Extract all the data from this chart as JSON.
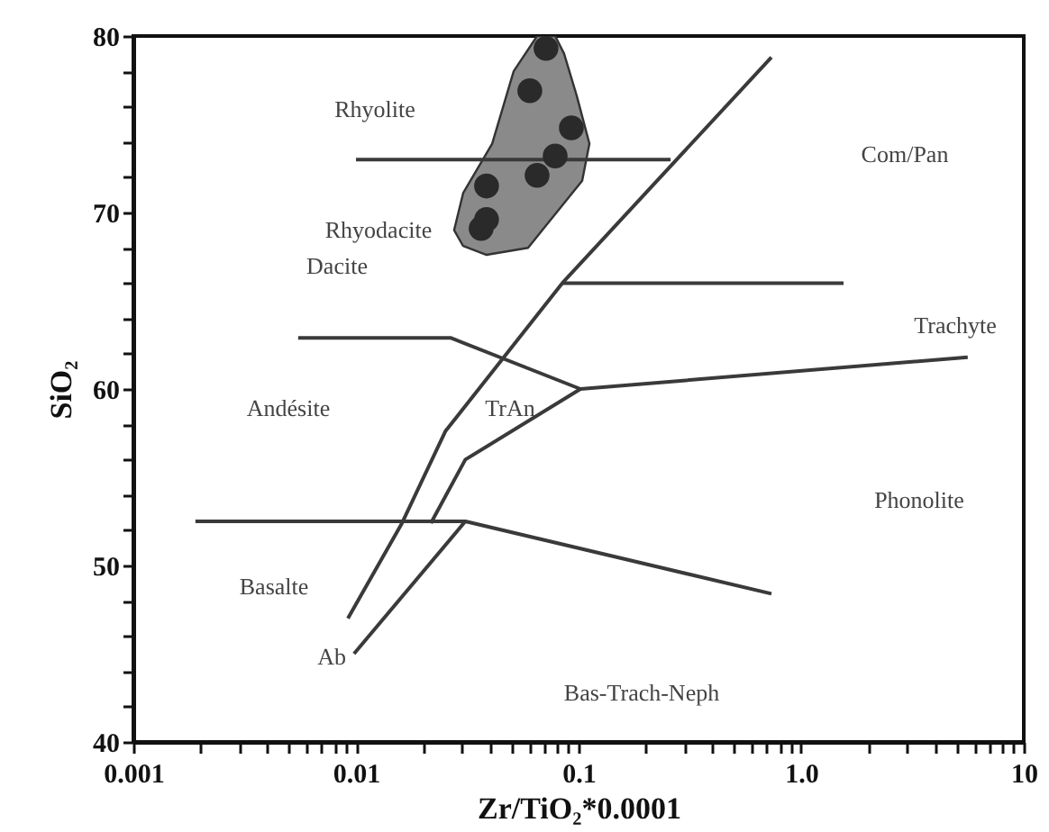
{
  "chart_data": {
    "type": "line",
    "log": "x",
    "marker": "none",
    "line_style": "solid",
    "xlabel": "Zr/TiO₂*0.0001",
    "ylabel": "SiO₂",
    "xlim": [
      0.001,
      10
    ],
    "ylim": [
      40,
      80
    ],
    "xticks": [
      {
        "value": 0.001,
        "label": "0.001"
      },
      {
        "value": 0.002,
        "label": null
      },
      {
        "value": 0.003,
        "label": null
      },
      {
        "value": 0.004,
        "label": null
      },
      {
        "value": 0.005,
        "label": null
      },
      {
        "value": 0.006,
        "label": null
      },
      {
        "value": 0.007,
        "label": null
      },
      {
        "value": 0.008,
        "label": null
      },
      {
        "value": 0.009,
        "label": null
      },
      {
        "value": 0.01,
        "label": "0.01"
      },
      {
        "value": 0.02,
        "label": null
      },
      {
        "value": 0.03,
        "label": null
      },
      {
        "value": 0.04,
        "label": null
      },
      {
        "value": 0.05,
        "label": null
      },
      {
        "value": 0.06,
        "label": null
      },
      {
        "value": 0.07,
        "label": null
      },
      {
        "value": 0.08,
        "label": null
      },
      {
        "value": 0.09,
        "label": null
      },
      {
        "value": 0.1,
        "label": "0.1"
      },
      {
        "value": 0.2,
        "label": null
      },
      {
        "value": 0.3,
        "label": null
      },
      {
        "value": 0.4,
        "label": null
      },
      {
        "value": 0.5,
        "label": null
      },
      {
        "value": 0.6,
        "label": null
      },
      {
        "value": 0.7,
        "label": null
      },
      {
        "value": 0.8,
        "label": null
      },
      {
        "value": 0.9,
        "label": null
      },
      {
        "value": 1,
        "label": "1.0"
      },
      {
        "value": 2,
        "label": null
      },
      {
        "value": 3,
        "label": null
      },
      {
        "value": 4,
        "label": null
      },
      {
        "value": 5,
        "label": null
      },
      {
        "value": 6,
        "label": null
      },
      {
        "value": 7,
        "label": null
      },
      {
        "value": 8,
        "label": null
      },
      {
        "value": 9,
        "label": null
      },
      10
    ],
    "yticks": [
      40,
      {
        "value": 42,
        "label": null
      },
      {
        "value": 44,
        "label": null
      },
      {
        "value": 46,
        "label": null
      },
      {
        "value": 48,
        "label": null
      },
      50,
      {
        "value": 52,
        "label": null
      },
      {
        "value": 54,
        "label": null
      },
      {
        "value": 56,
        "label": null
      },
      {
        "value": 58,
        "label": null
      },
      60,
      {
        "value": 62,
        "label": null
      },
      {
        "value": 64,
        "label": null
      },
      {
        "value": 66,
        "label": null
      },
      {
        "value": 68,
        "label": null
      },
      70,
      {
        "value": 72,
        "label": null
      },
      {
        "value": 74,
        "label": null
      },
      {
        "value": 76,
        "label": null
      },
      {
        "value": 78,
        "label": null
      },
      80
    ],
    "series": [
      {
        "type": "area",
        "color": "#8a8a8a",
        "x": [
          0.0651,
          0.0511,
          0.0409,
          0.0303,
          0.0276,
          0.0303,
          0.0386,
          0.0593,
          0.1038,
          0.1119,
          0.0982,
          0.0861,
          0.0785,
          0.0651
        ],
        "values": [
          80,
          78,
          73.9,
          71.1,
          69,
          68.1,
          67.6,
          68,
          71.8,
          73.9,
          76.6,
          79,
          80,
          80
        ]
      },
      {
        "color": "#3a3a3a",
        "x": [
          0.01,
          0.259
        ],
        "values": [
          73,
          73
        ]
      },
      {
        "color": "#3a3a3a",
        "x": [
          0.735,
          0.0845,
          0.0252,
          0.0161,
          0.0092
        ],
        "values": [
          78.8,
          66,
          57.6,
          52.4,
          47
        ]
      },
      {
        "color": "#3a3a3a",
        "x": [
          0.0845,
          1.55
        ],
        "values": [
          66,
          66
        ]
      },
      {
        "color": "#3a3a3a",
        "x": [
          0.0055,
          0.0266,
          0.102,
          5.6
        ],
        "values": [
          62.9,
          62.9,
          60,
          61.8
        ]
      },
      {
        "color": "#3a3a3a",
        "x": [
          0.102,
          0.031,
          0.0217
        ],
        "values": [
          60,
          56,
          52.4
        ]
      },
      {
        "color": "#3a3a3a",
        "x": [
          0.0019,
          0.031,
          0.735
        ],
        "values": [
          52.5,
          52.5,
          48.4
        ]
      },
      {
        "color": "#3a3a3a",
        "x": [
          0.0098,
          0.031
        ],
        "values": [
          45,
          52.5
        ]
      },
      {
        "type": "scatter",
        "color": "#2a2a2a",
        "marker": "circle",
        "x": [
          0.0714,
          0.0604,
          0.0928,
          0.0785,
          0.0651,
          0.0386,
          0.0386,
          0.0365
        ],
        "values": [
          79.3,
          76.9,
          74.8,
          73.2,
          72.1,
          71.5,
          69.6,
          69.1
        ]
      }
    ],
    "annotations": [
      "Rhyolite",
      "Rhyodacite",
      "Dacite",
      "Com/Pan",
      "Trachyte",
      "Andésite",
      "TrAn",
      "Phonolite",
      "Basalte",
      "Ab",
      "Bas-Trach-Neph"
    ]
  }
}
